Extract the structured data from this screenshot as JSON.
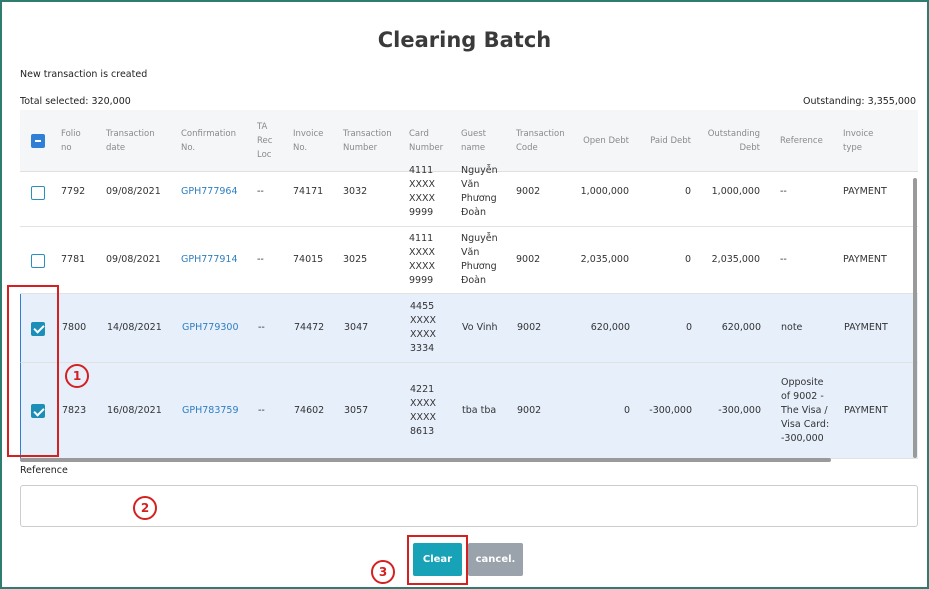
{
  "title": "Clearing Batch",
  "message": "New transaction is created",
  "total_selected": "Total selected: 320,000",
  "outstanding": "Outstanding: 3,355,000",
  "table": {
    "columns": [
      "Folio no",
      "Transaction date",
      "Confirmation No.",
      "TA Rec Loc",
      "Invoice No.",
      "Transaction Number",
      "Card Number",
      "Guest name",
      "Transaction Code",
      "Open Debt",
      "Paid Debt",
      "Outstanding Debt",
      "Reference",
      "Invoice type"
    ],
    "rows": [
      {
        "checked": false,
        "cells": [
          "7792",
          "09/08/2021",
          "GPH777964",
          "--",
          "74171",
          "3032",
          "4111 XXXX XXXX 9999",
          "Nguyễn Văn Phương Đoàn",
          "9002",
          "1,000,000",
          "0",
          "1,000,000",
          "--",
          "PAYMENT"
        ]
      },
      {
        "checked": false,
        "cells": [
          "7781",
          "09/08/2021",
          "GPH777914",
          "--",
          "74015",
          "3025",
          "4111 XXXX XXXX 9999",
          "Nguyễn Văn Phương Đoàn",
          "9002",
          "2,035,000",
          "0",
          "2,035,000",
          "--",
          "PAYMENT"
        ]
      },
      {
        "checked": true,
        "cells": [
          "7800",
          "14/08/2021",
          "GPH779300",
          "--",
          "74472",
          "3047",
          "4455 XXXX XXXX 3334",
          "Vo Vinh",
          "9002",
          "620,000",
          "0",
          "620,000",
          "note",
          "PAYMENT"
        ]
      },
      {
        "checked": true,
        "cells": [
          "7823",
          "16/08/2021",
          "GPH783759",
          "--",
          "74602",
          "3057",
          "4221 XXXX XXXX 8613",
          "tba tba",
          "9002",
          "0",
          "-300,000",
          "-300,000",
          "Opposite of 9002 - The Visa / Visa Card: -300,000",
          "PAYMENT"
        ]
      }
    ]
  },
  "reference_label": "Reference",
  "buttons": {
    "clear": "Clear",
    "cancel": "cancel."
  },
  "annotations": [
    "1",
    "2",
    "3"
  ]
}
